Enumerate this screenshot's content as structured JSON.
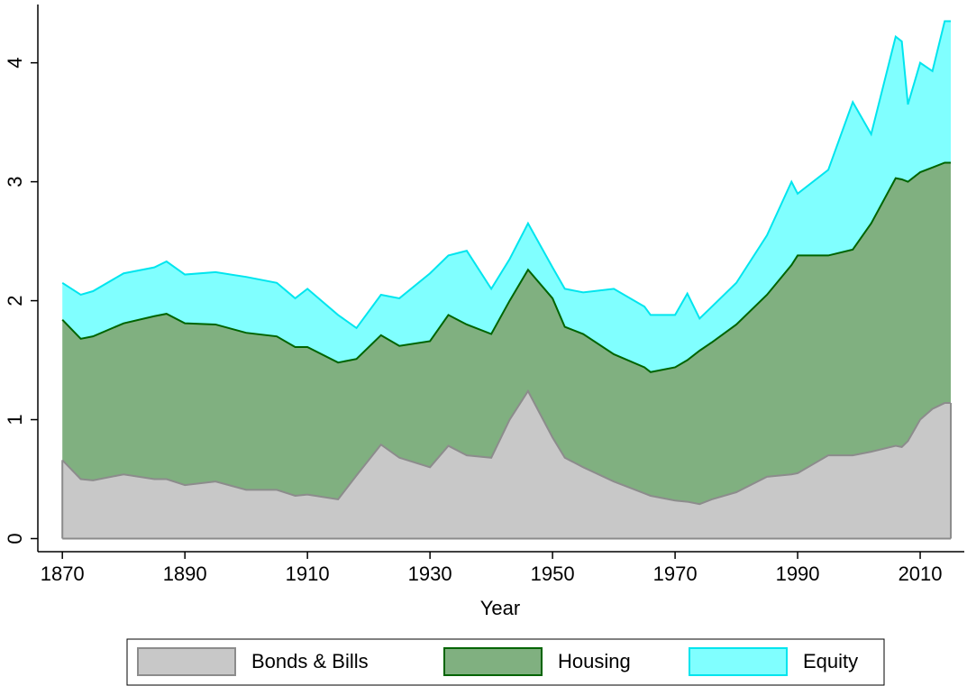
{
  "chart_data": {
    "type": "area",
    "stacked": true,
    "x_label": "Year",
    "x": [
      1870,
      1873,
      1875,
      1880,
      1885,
      1887,
      1890,
      1895,
      1900,
      1905,
      1908,
      1910,
      1915,
      1918,
      1922,
      1925,
      1930,
      1933,
      1936,
      1940,
      1943,
      1946,
      1950,
      1952,
      1955,
      1960,
      1965,
      1966,
      1970,
      1972,
      1974,
      1976,
      1980,
      1985,
      1989,
      1990,
      1995,
      1999,
      2002,
      2006,
      2007,
      2008,
      2010,
      2012,
      2014,
      2015
    ],
    "series": [
      {
        "name": "Bonds & Bills",
        "color": "#c8c8c8",
        "line_color": "#8c8c8c",
        "values": [
          0.66,
          0.5,
          0.49,
          0.54,
          0.5,
          0.5,
          0.45,
          0.48,
          0.41,
          0.41,
          0.36,
          0.37,
          0.33,
          0.53,
          0.79,
          0.68,
          0.6,
          0.78,
          0.7,
          0.68,
          1.0,
          1.24,
          0.85,
          0.68,
          0.6,
          0.48,
          0.38,
          0.36,
          0.32,
          0.31,
          0.29,
          0.33,
          0.39,
          0.52,
          0.54,
          0.55,
          0.7,
          0.7,
          0.73,
          0.78,
          0.77,
          0.82,
          1.0,
          1.09,
          1.14,
          1.14
        ]
      },
      {
        "name": "Housing",
        "color": "#80b080",
        "line_color": "#006400",
        "values": [
          1.18,
          1.18,
          1.21,
          1.27,
          1.37,
          1.39,
          1.36,
          1.32,
          1.32,
          1.29,
          1.25,
          1.24,
          1.15,
          0.98,
          0.92,
          0.94,
          1.06,
          1.1,
          1.1,
          1.04,
          1.0,
          1.02,
          1.17,
          1.1,
          1.12,
          1.07,
          1.06,
          1.04,
          1.12,
          1.19,
          1.29,
          1.32,
          1.41,
          1.53,
          1.76,
          1.83,
          1.68,
          1.73,
          1.92,
          2.25,
          2.25,
          2.18,
          2.08,
          2.03,
          2.02,
          2.02
        ]
      },
      {
        "name": "Equity",
        "color": "#80ffff",
        "line_color": "#00e5ee",
        "values": [
          0.31,
          0.37,
          0.38,
          0.42,
          0.41,
          0.44,
          0.41,
          0.44,
          0.47,
          0.45,
          0.41,
          0.49,
          0.4,
          0.26,
          0.34,
          0.4,
          0.57,
          0.5,
          0.62,
          0.38,
          0.35,
          0.39,
          0.26,
          0.32,
          0.35,
          0.55,
          0.51,
          0.48,
          0.44,
          0.56,
          0.27,
          0.3,
          0.35,
          0.5,
          0.7,
          0.52,
          0.72,
          1.24,
          0.75,
          1.19,
          1.16,
          0.65,
          0.92,
          0.81,
          1.19,
          1.19
        ]
      }
    ],
    "xlim": [
      1866,
      2017.2
    ],
    "xticks": [
      1870,
      1890,
      1910,
      1930,
      1950,
      1970,
      1990,
      2010
    ],
    "ylim": [
      -0.11,
      4.49
    ],
    "yticks": [
      0,
      1,
      2,
      3,
      4
    ],
    "legend": "bottom"
  }
}
